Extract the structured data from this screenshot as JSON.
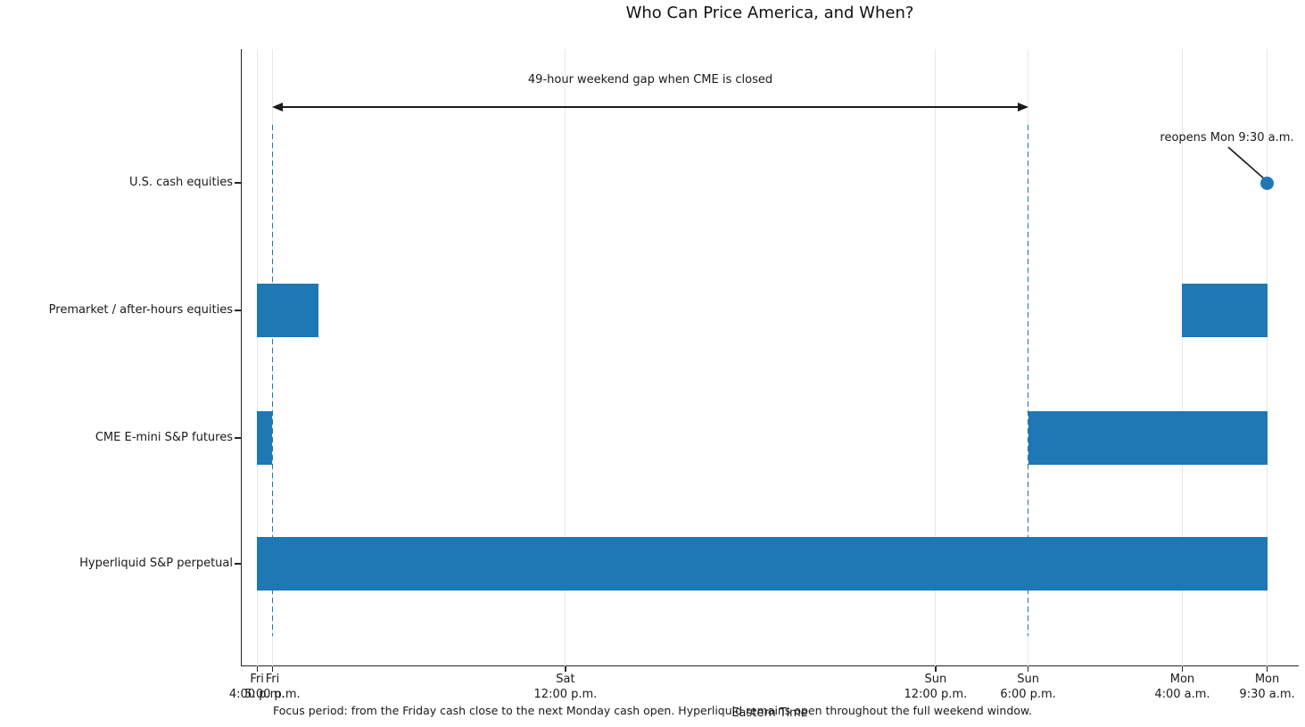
{
  "chart_data": {
    "type": "bar",
    "variant": "horizontal-timeline-gantt",
    "title": "Who Can Price America, and When?",
    "xlabel": "Eastern Time",
    "caption": "Focus period: from the Friday cash close to the next Monday cash open. Hyperliquid remains open throughout the full weekend window.",
    "bar_color": "#1f77b4",
    "dashed_line_color": "#1f77b4",
    "grid": true,
    "x_axis": {
      "unit": "hours since Friday 4:00 p.m. ET",
      "xlim": [
        -1.05,
        67.55
      ],
      "ticks": [
        {
          "hour": 0,
          "day": "Fri",
          "time": "4:00 p.m."
        },
        {
          "hour": 1,
          "day": "Fri",
          "time": "5:00 p.m."
        },
        {
          "hour": 20,
          "day": "Sat",
          "time": "12:00 p.m."
        },
        {
          "hour": 44,
          "day": "Sun",
          "time": "12:00 p.m."
        },
        {
          "hour": 50,
          "day": "Sun",
          "time": "6:00 p.m."
        },
        {
          "hour": 60,
          "day": "Mon",
          "time": "4:00 a.m."
        },
        {
          "hour": 65.5,
          "day": "Mon",
          "time": "9:30 a.m."
        }
      ]
    },
    "rows": [
      {
        "label": "U.S. cash equities",
        "segments": [],
        "marker_hour": 65.5
      },
      {
        "label": "Premarket / after-hours equities",
        "segments": [
          [
            0,
            4
          ],
          [
            60,
            65.5
          ]
        ]
      },
      {
        "label": "CME E-mini S&P futures",
        "segments": [
          [
            0,
            1
          ],
          [
            50,
            65.5
          ]
        ]
      },
      {
        "label": "Hyperliquid S&P perpetual",
        "segments": [
          [
            0,
            65.5
          ]
        ]
      }
    ],
    "dashed_vlines_hours": [
      1,
      50
    ],
    "annotations": {
      "gap_arrow": {
        "from_hour": 1,
        "to_hour": 50,
        "label": "49-hour weekend gap when CME is closed"
      },
      "reopen": {
        "label": "reopens Mon 9:30 a.m.",
        "target_row": "U.S. cash equities",
        "target_hour": 65.5
      }
    }
  }
}
